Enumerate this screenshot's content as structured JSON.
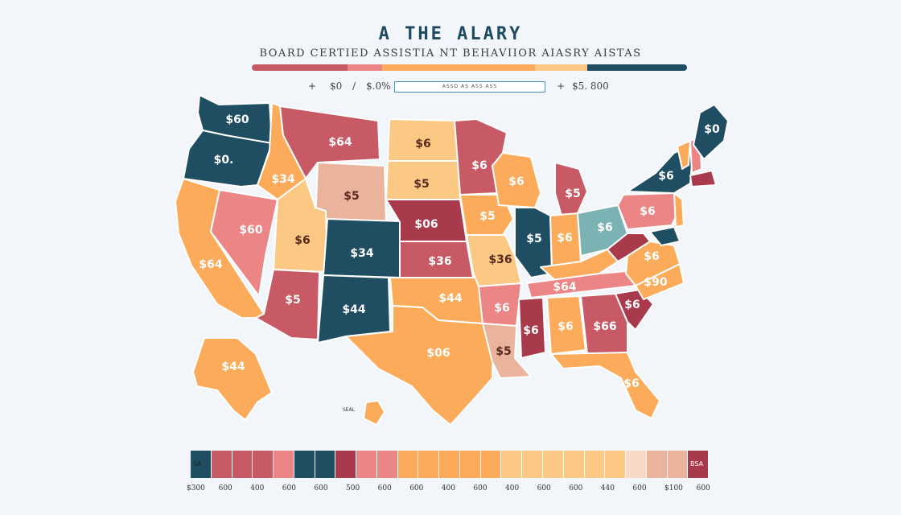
{
  "title": "A THE ALARY",
  "subtitle": "BOARD CERTIED   ASSISTIA NT BEHAVIIOR AIASRY AISTAS",
  "range": {
    "marker_left": "+",
    "min_label": "$0",
    "slash": "/",
    "pct_label": "$.0%",
    "box_text": "ASSD   AS   ASS   ASS",
    "marker_right": "+",
    "max_label": "$5. 800"
  },
  "colors": {
    "navy": "#1f4e63",
    "crimson": "#a83a4c",
    "red": "#c85a66",
    "pink": "#ec8585",
    "orange": "#fcab5a",
    "peach": "#fbc984",
    "sand": "#eab39c",
    "teal": "#7bb2b3",
    "background": "#f2f5fa"
  },
  "top_bar_colors": [
    "#c85a66",
    "#ec8585",
    "#fcab5a",
    "#fbc984",
    "#1f4e63"
  ],
  "states": [
    {
      "id": "WA",
      "label": "$60",
      "color": "#1f4e63"
    },
    {
      "id": "OR",
      "label": "$0.",
      "color": "#1f4e63"
    },
    {
      "id": "CA",
      "label": "$64",
      "color": "#fcab5a"
    },
    {
      "id": "NV",
      "label": "$60",
      "color": "#ec8585"
    },
    {
      "id": "ID",
      "label": "$34",
      "color": "#fcab5a"
    },
    {
      "id": "MT",
      "label": "$64",
      "color": "#c85a66"
    },
    {
      "id": "WY",
      "label": "$5",
      "color": "#eab39c"
    },
    {
      "id": "UT",
      "label": "$6",
      "color": "#fbc984"
    },
    {
      "id": "AZ",
      "label": "$5",
      "color": "#c85a66"
    },
    {
      "id": "CO",
      "label": "$34",
      "color": "#1f4e63"
    },
    {
      "id": "NM",
      "label": "$44",
      "color": "#1f4e63"
    },
    {
      "id": "ND",
      "label": "$6",
      "color": "#fbc984"
    },
    {
      "id": "SD",
      "label": "$5",
      "color": "#fbc984"
    },
    {
      "id": "NE",
      "label": "$06",
      "color": "#a83a4c"
    },
    {
      "id": "KS",
      "label": "$36",
      "color": "#c85a66"
    },
    {
      "id": "OK",
      "label": "$44",
      "color": "#fcab5a"
    },
    {
      "id": "TX",
      "label": "$06",
      "color": "#fcab5a"
    },
    {
      "id": "MN",
      "label": "$6",
      "color": "#c85a66"
    },
    {
      "id": "IA",
      "label": "$5",
      "color": "#fcab5a"
    },
    {
      "id": "MO",
      "label": "$36",
      "color": "#fbc984"
    },
    {
      "id": "AR",
      "label": "$6",
      "color": "#ec8585"
    },
    {
      "id": "LA",
      "label": "$5",
      "color": "#eab39c"
    },
    {
      "id": "WI",
      "label": "$6",
      "color": "#fcab5a"
    },
    {
      "id": "IL",
      "label": "$5",
      "color": "#1f4e63"
    },
    {
      "id": "MI",
      "label": "$5",
      "color": "#c85a66"
    },
    {
      "id": "IN",
      "label": "$6",
      "color": "#fcab5a"
    },
    {
      "id": "OH",
      "label": "$6",
      "color": "#7bb2b3"
    },
    {
      "id": "KY",
      "label": "",
      "color": "#fcab5a"
    },
    {
      "id": "TN",
      "label": "$64",
      "color": "#ec8585"
    },
    {
      "id": "MS",
      "label": "$6",
      "color": "#a83a4c"
    },
    {
      "id": "AL",
      "label": "$6",
      "color": "#fcab5a"
    },
    {
      "id": "GA",
      "label": "$66",
      "color": "#c85a66"
    },
    {
      "id": "FL",
      "label": "$6",
      "color": "#fcab5a"
    },
    {
      "id": "SC",
      "label": "$6",
      "color": "#a83a4c"
    },
    {
      "id": "NC",
      "label": "$90",
      "color": "#fcab5a"
    },
    {
      "id": "VA",
      "label": "$6",
      "color": "#fcab5a"
    },
    {
      "id": "WV",
      "label": "",
      "color": "#a83a4c"
    },
    {
      "id": "PA",
      "label": "$6",
      "color": "#ec8585"
    },
    {
      "id": "NY",
      "label": "$6",
      "color": "#1f4e63"
    },
    {
      "id": "VT",
      "label": "",
      "color": "#fcab5a"
    },
    {
      "id": "NH",
      "label": "",
      "color": "#ec8585"
    },
    {
      "id": "ME",
      "label": "$0",
      "color": "#1f4e63"
    },
    {
      "id": "MA",
      "label": "",
      "color": "#a83a4c"
    },
    {
      "id": "NJ",
      "label": "",
      "color": "#fcab5a"
    },
    {
      "id": "MD",
      "label": "",
      "color": "#1f4e63"
    },
    {
      "id": "AK",
      "label": "$44",
      "color": "#fcab5a"
    },
    {
      "id": "HI",
      "label": "",
      "color": "#fcab5a"
    }
  ],
  "hawaii_label": "SEAL",
  "legend": {
    "left_text": "SA",
    "right_text": "BSA",
    "swatches": [
      "#1f4e63",
      "#c85a66",
      "#c85a66",
      "#c85a66",
      "#ec8585",
      "#1f4e63",
      "#1f4e63",
      "#a83a4c",
      "#ec8585",
      "#ec8585",
      "#fcab5a",
      "#fcab5a",
      "#fcab5a",
      "#fcab5a",
      "#fcab5a",
      "#fbc984",
      "#fbc984",
      "#fbc984",
      "#fbc984",
      "#fbc984",
      "#fbc984",
      "#f6dac7",
      "#eab39c",
      "#eab39c",
      "#a83a4c"
    ],
    "ticks": [
      "$300",
      "600",
      "400",
      "600",
      "600",
      "500",
      "600",
      "600",
      "400",
      "600",
      "400",
      "600",
      "600",
      "440",
      "600",
      "$100",
      "600"
    ]
  }
}
